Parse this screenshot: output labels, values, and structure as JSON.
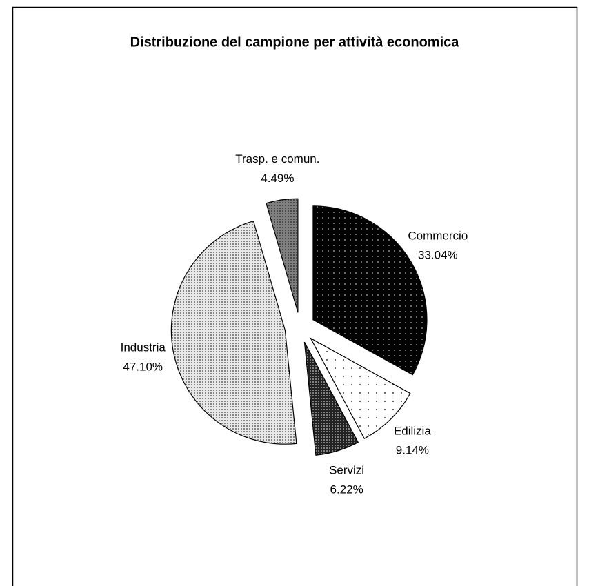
{
  "chart_data": {
    "type": "pie",
    "title": "Distribuzione del campione per attività economica",
    "categories": [
      "Commercio",
      "Edilizia",
      "Servizi",
      "Industria",
      "Trasp. e comun."
    ],
    "values": [
      33.04,
      9.14,
      6.22,
      47.1,
      4.49
    ],
    "value_labels": [
      "33.04%",
      "9.14%",
      "6.22%",
      "47.10%",
      "4.49%"
    ],
    "colors": [
      "#000000",
      "#ffffff",
      "#222222",
      "#e8e8e8",
      "#808080"
    ]
  }
}
